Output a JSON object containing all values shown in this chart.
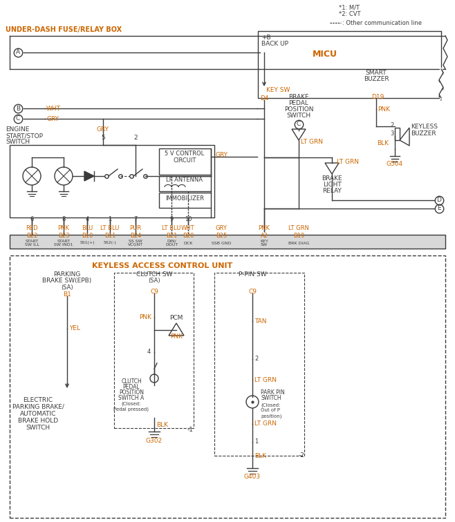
{
  "bg_color": "#ffffff",
  "line_color": "#3a3a3a",
  "orange_color": "#cc6600",
  "fuse_box_label": "UNDER-DASH FUSE/RELAY BOX",
  "mcu_label": "MICU",
  "keyless_unit_label": "KEYLESS ACCESS CONTROL UNIT",
  "legend1": "*1: M/T",
  "legend2": "*2: CVT",
  "legend3": ": Other communication line"
}
